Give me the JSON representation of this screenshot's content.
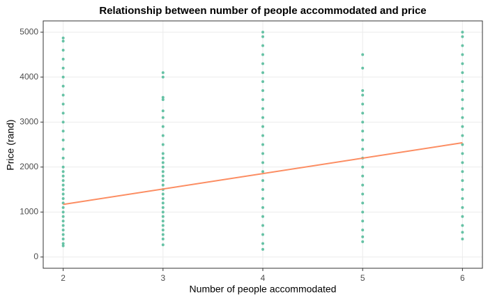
{
  "chart_data": {
    "type": "scatter",
    "title": "Relationship between number of people accommodated and price",
    "x_label": "Number of people accommodated",
    "y_label": "Price (rand)",
    "xlim": [
      1.8,
      6.2
    ],
    "xticks": [
      2,
      3,
      4,
      5,
      6
    ],
    "ylim": [
      -250,
      5250
    ],
    "yticks": [
      0,
      1000,
      2000,
      3000,
      4000,
      5000
    ],
    "grid": true,
    "series": [
      {
        "type": "scatter",
        "color": "#66c2a5",
        "x": [
          2,
          2,
          2,
          2,
          2,
          2,
          2,
          2,
          2,
          2,
          2,
          2,
          2,
          2,
          2,
          2,
          2,
          2,
          2,
          2,
          2,
          2,
          2,
          2,
          2,
          2,
          2,
          2,
          2,
          2,
          2,
          2,
          2,
          2,
          3,
          3,
          3,
          3,
          3,
          3,
          3,
          3,
          3,
          3,
          3,
          3,
          3,
          3,
          3,
          3,
          3,
          3,
          3,
          3,
          3,
          3,
          3,
          3,
          3,
          3,
          3,
          3,
          3,
          3,
          4,
          4,
          4,
          4,
          4,
          4,
          4,
          4,
          4,
          4,
          4,
          4,
          4,
          4,
          4,
          4,
          4,
          4,
          4,
          4,
          4,
          4,
          4,
          4,
          4,
          4,
          5,
          5,
          5,
          5,
          5,
          5,
          5,
          5,
          5,
          5,
          5,
          5,
          5,
          5,
          5,
          5,
          5,
          5,
          5,
          5,
          5,
          6,
          6,
          6,
          6,
          6,
          6,
          6,
          6,
          6,
          6,
          6,
          6,
          6,
          6,
          6,
          6,
          6,
          6,
          6,
          6,
          6,
          6,
          6,
          6,
          6
        ],
        "values": [
          250,
          300,
          400,
          500,
          600,
          700,
          800,
          900,
          1000,
          1100,
          1200,
          1300,
          1400,
          1500,
          1600,
          1700,
          1800,
          1900,
          2000,
          2200,
          2400,
          2600,
          2800,
          3000,
          3200,
          3400,
          3600,
          3800,
          4000,
          4200,
          4400,
          4600,
          4800,
          4870,
          270,
          400,
          500,
          600,
          700,
          800,
          900,
          1000,
          1100,
          1200,
          1300,
          1400,
          1500,
          1600,
          1700,
          1800,
          1900,
          2000,
          2100,
          2200,
          2300,
          2500,
          2700,
          2900,
          3100,
          3250,
          3500,
          3550,
          4000,
          4100,
          170,
          300,
          500,
          700,
          900,
          1100,
          1300,
          1500,
          1700,
          1900,
          2100,
          2300,
          2500,
          2700,
          2900,
          3100,
          3300,
          3500,
          3700,
          3900,
          4100,
          4300,
          4500,
          4700,
          4900,
          5000,
          340,
          450,
          600,
          800,
          1000,
          1200,
          1400,
          1600,
          1800,
          2000,
          2200,
          2400,
          2600,
          2800,
          3000,
          3200,
          3400,
          3600,
          3700,
          4200,
          4500,
          400,
          550,
          700,
          900,
          1100,
          1300,
          1500,
          1700,
          1900,
          2100,
          2300,
          2500,
          2700,
          2900,
          3100,
          3300,
          3500,
          3700,
          3900,
          4100,
          4300,
          4500,
          4700,
          4900,
          5000
        ]
      },
      {
        "type": "line",
        "color": "#fc8d62",
        "x": [
          2,
          6
        ],
        "values": [
          1170,
          2540
        ]
      }
    ]
  }
}
